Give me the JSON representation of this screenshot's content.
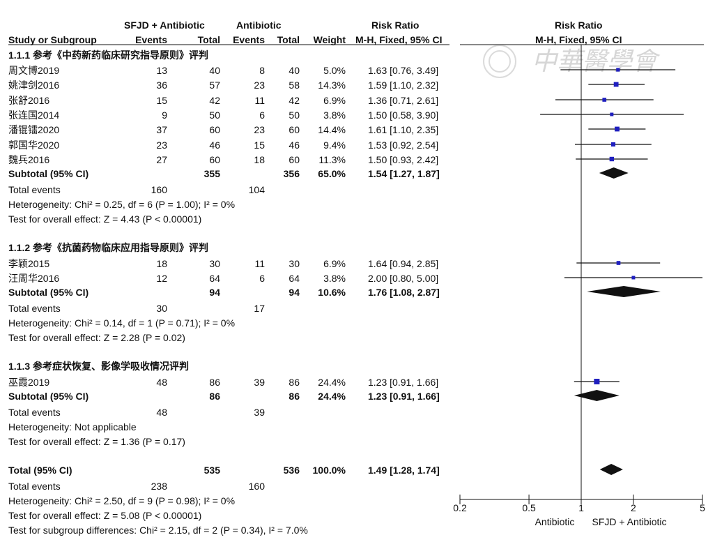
{
  "header": {
    "group1": "SFJD + Antibiotic",
    "group2": "Antibiotic",
    "rr_col": "Risk Ratio",
    "rr_plot": "Risk Ratio",
    "study": "Study or Subgroup",
    "events1": "Events",
    "total1": "Total",
    "events2": "Events",
    "total2": "Total",
    "weight": "Weight",
    "method_col": "M-H, Fixed, 95% CI",
    "method_plot": "M-H, Fixed, 95% CI"
  },
  "watermark": "中華醫學會",
  "subgroups": [
    {
      "title": "1.1.1 参考《中药新药临床研究指导原则》评判",
      "studies": [
        {
          "name": "周文博2019",
          "e1": "13",
          "t1": "40",
          "e2": "8",
          "t2": "40",
          "w": "5.0%",
          "ci": "1.63 [0.76, 3.49]"
        },
        {
          "name": "姚津剑2016",
          "e1": "36",
          "t1": "57",
          "e2": "23",
          "t2": "58",
          "w": "14.3%",
          "ci": "1.59 [1.10, 2.32]"
        },
        {
          "name": "张舒2016",
          "e1": "15",
          "t1": "42",
          "e2": "11",
          "t2": "42",
          "w": "6.9%",
          "ci": "1.36 [0.71, 2.61]"
        },
        {
          "name": "张连国2014",
          "e1": "9",
          "t1": "50",
          "e2": "6",
          "t2": "50",
          "w": "3.8%",
          "ci": "1.50 [0.58, 3.90]"
        },
        {
          "name": "潘锟镭2020",
          "e1": "37",
          "t1": "60",
          "e2": "23",
          "t2": "60",
          "w": "14.4%",
          "ci": "1.61 [1.10, 2.35]"
        },
        {
          "name": "郭国华2020",
          "e1": "23",
          "t1": "46",
          "e2": "15",
          "t2": "46",
          "w": "9.4%",
          "ci": "1.53 [0.92, 2.54]"
        },
        {
          "name": "魏兵2016",
          "e1": "27",
          "t1": "60",
          "e2": "18",
          "t2": "60",
          "w": "11.3%",
          "ci": "1.50 [0.93, 2.42]"
        }
      ],
      "subtotal": {
        "label": "Subtotal (95% CI)",
        "t1": "355",
        "t2": "356",
        "w": "65.0%",
        "ci": "1.54 [1.27, 1.87]"
      },
      "total_events": {
        "label": "Total events",
        "e1": "160",
        "e2": "104"
      },
      "heterogeneity": "Heterogeneity: Chi² = 0.25, df = 6 (P = 1.00); I² = 0%",
      "overall": "Test for overall effect: Z = 4.43 (P < 0.00001)"
    },
    {
      "title": "1.1.2 参考《抗菌药物临床应用指导原则》评判",
      "studies": [
        {
          "name": "李颖2015",
          "e1": "18",
          "t1": "30",
          "e2": "11",
          "t2": "30",
          "w": "6.9%",
          "ci": "1.64 [0.94, 2.85]"
        },
        {
          "name": "汪周华2016",
          "e1": "12",
          "t1": "64",
          "e2": "6",
          "t2": "64",
          "w": "3.8%",
          "ci": "2.00 [0.80, 5.00]"
        }
      ],
      "subtotal": {
        "label": "Subtotal (95% CI)",
        "t1": "94",
        "t2": "94",
        "w": "10.6%",
        "ci": "1.76 [1.08, 2.87]"
      },
      "total_events": {
        "label": "Total events",
        "e1": "30",
        "e2": "17"
      },
      "heterogeneity": "Heterogeneity: Chi² = 0.14, df = 1 (P = 0.71); I² = 0%",
      "overall": "Test for overall effect: Z = 2.28 (P = 0.02)"
    },
    {
      "title": "1.1.3 参考症状恢复、影像学吸收情况评判",
      "studies": [
        {
          "name": "巫霞2019",
          "e1": "48",
          "t1": "86",
          "e2": "39",
          "t2": "86",
          "w": "24.4%",
          "ci": "1.23 [0.91, 1.66]"
        }
      ],
      "subtotal": {
        "label": "Subtotal (95% CI)",
        "t1": "86",
        "t2": "86",
        "w": "24.4%",
        "ci": "1.23 [0.91, 1.66]"
      },
      "total_events": {
        "label": "Total events",
        "e1": "48",
        "e2": "39"
      },
      "heterogeneity": "Heterogeneity: Not applicable",
      "overall": "Test for overall effect: Z = 1.36 (P = 0.17)"
    }
  ],
  "total": {
    "label": "Total (95% CI)",
    "t1": "535",
    "t2": "536",
    "w": "100.0%",
    "ci": "1.49 [1.28, 1.74]"
  },
  "total_events": {
    "label": "Total events",
    "e1": "238",
    "e2": "160"
  },
  "heterogeneity": "Heterogeneity: Chi² = 2.50, df = 9 (P = 0.98); I² = 0%",
  "overall": "Test for overall effect: Z = 5.08 (P < 0.00001)",
  "subgroup_diff": "Test for subgroup differences: Chi² = 2.15, df = 2 (P = 0.34), I² = 7.0%",
  "chart_data": {
    "type": "forest",
    "title": "Risk Ratio",
    "subtitle": "M-H, Fixed, 95% CI",
    "scale": "log",
    "xlim": [
      0.2,
      5
    ],
    "ticks": [
      "0.2",
      "0.5",
      "1",
      "2",
      "5"
    ],
    "tick_values": [
      0.2,
      0.5,
      1,
      2,
      5
    ],
    "left_label": "Antibiotic",
    "right_label": "SFJD + Antibiotic",
    "marker_color": "#1f1fbf",
    "studies": [
      {
        "name": "周文博2019",
        "rr": 1.63,
        "lo": 0.76,
        "hi": 3.49,
        "weight": 5.0
      },
      {
        "name": "姚津剑2016",
        "rr": 1.59,
        "lo": 1.1,
        "hi": 2.32,
        "weight": 14.3
      },
      {
        "name": "张舒2016",
        "rr": 1.36,
        "lo": 0.71,
        "hi": 2.61,
        "weight": 6.9
      },
      {
        "name": "张连国2014",
        "rr": 1.5,
        "lo": 0.58,
        "hi": 3.9,
        "weight": 3.8
      },
      {
        "name": "潘锟镭2020",
        "rr": 1.61,
        "lo": 1.1,
        "hi": 2.35,
        "weight": 14.4
      },
      {
        "name": "郭国华2020",
        "rr": 1.53,
        "lo": 0.92,
        "hi": 2.54,
        "weight": 9.4
      },
      {
        "name": "魏兵2016",
        "rr": 1.5,
        "lo": 0.93,
        "hi": 2.42,
        "weight": 11.3
      },
      {
        "name": "李颖2015",
        "rr": 1.64,
        "lo": 0.94,
        "hi": 2.85,
        "weight": 6.9
      },
      {
        "name": "汪周华2016",
        "rr": 2.0,
        "lo": 0.8,
        "hi": 5.0,
        "weight": 3.8
      },
      {
        "name": "巫霞2019",
        "rr": 1.23,
        "lo": 0.91,
        "hi": 1.66,
        "weight": 24.4
      }
    ],
    "diamonds": [
      {
        "name": "Subtotal 1.1.1",
        "rr": 1.54,
        "lo": 1.27,
        "hi": 1.87
      },
      {
        "name": "Subtotal 1.1.2",
        "rr": 1.76,
        "lo": 1.08,
        "hi": 2.87
      },
      {
        "name": "Subtotal 1.1.3",
        "rr": 1.23,
        "lo": 0.91,
        "hi": 1.66
      },
      {
        "name": "Total",
        "rr": 1.49,
        "lo": 1.28,
        "hi": 1.74
      }
    ]
  }
}
